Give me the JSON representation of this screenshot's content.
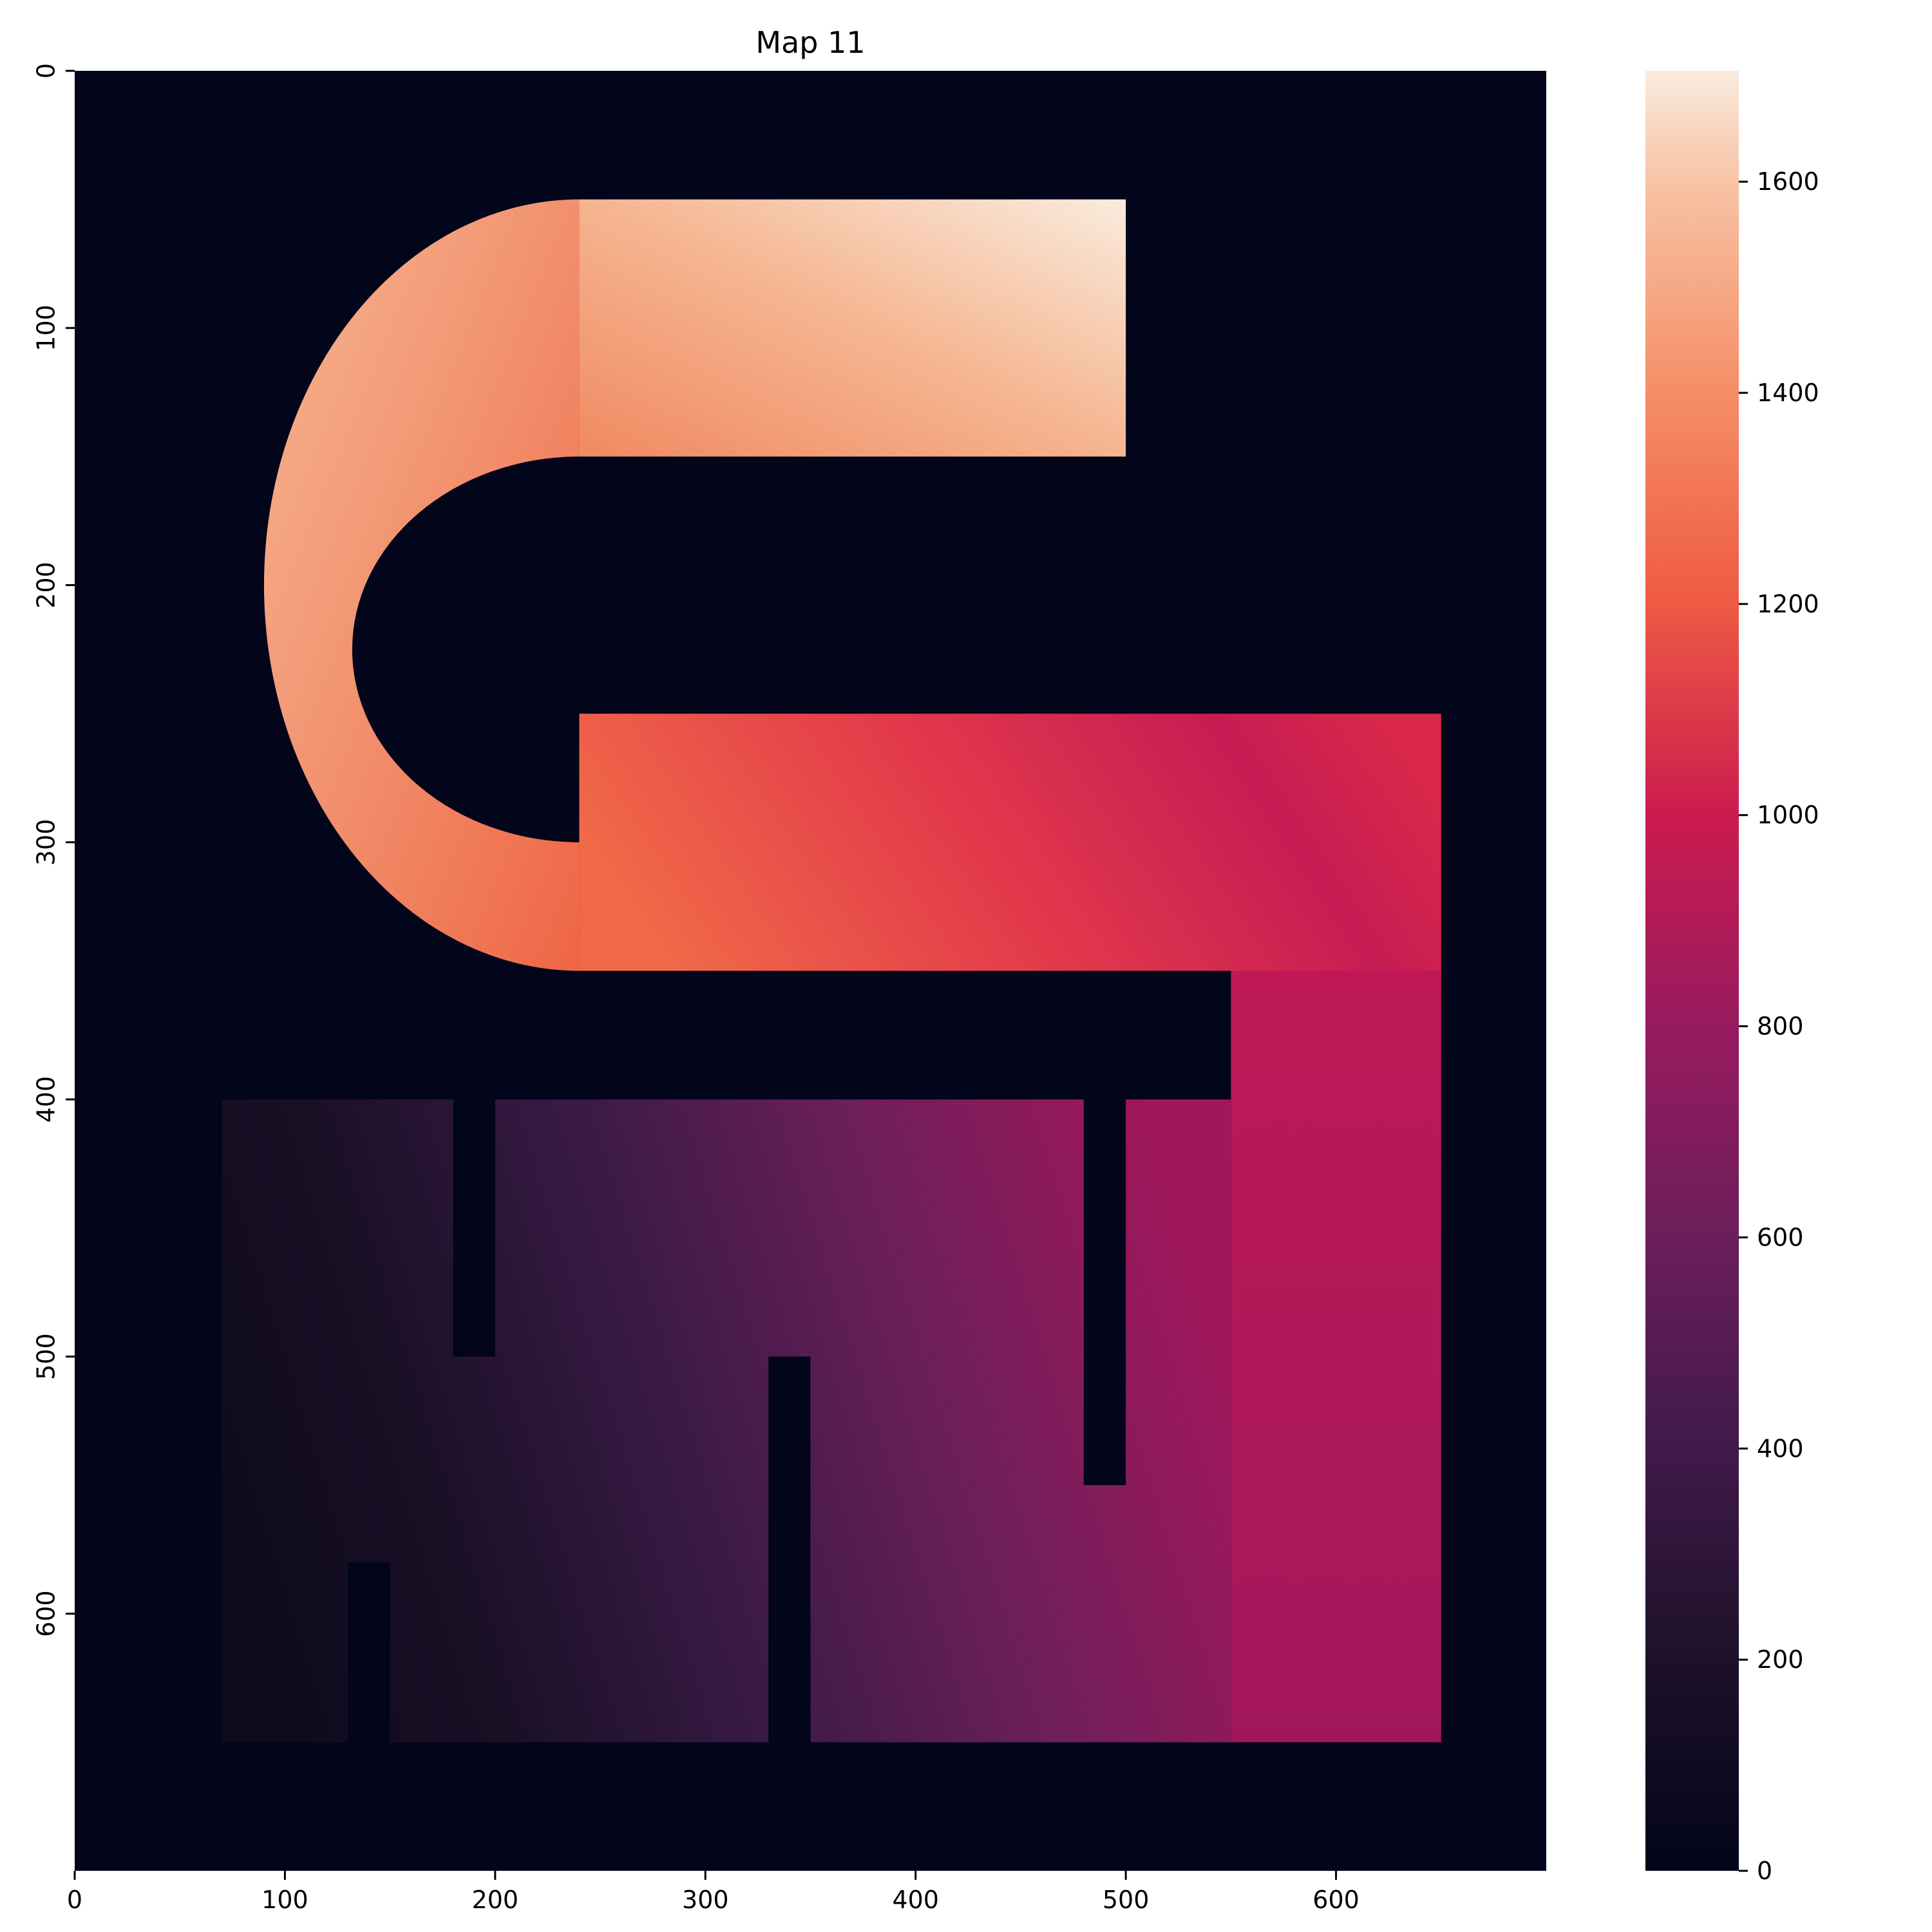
{
  "chart_data": {
    "type": "heatmap",
    "title": "Map 11",
    "xlabel": "",
    "ylabel": "",
    "x_ticks": [
      0,
      100,
      200,
      300,
      400,
      500,
      600
    ],
    "y_ticks": [
      0,
      100,
      200,
      300,
      400,
      500,
      600
    ],
    "xlim": [
      0,
      700
    ],
    "ylim": [
      700,
      0
    ],
    "colorbar": {
      "ticks": [
        0,
        200,
        400,
        600,
        800,
        1000,
        1200,
        1400,
        1600
      ],
      "range": [
        0,
        1705
      ],
      "colormap": "rocket"
    },
    "regions": [
      {
        "name": "upper-corridor-value-increase",
        "kind": "path",
        "note": "C-shaped corridor with distance values rising toward the top-right end (~1700)"
      },
      {
        "name": "middle-corridor",
        "kind": "path",
        "note": "horizontal band rows 250-350 from x 240 to 650, values ~1000-1100"
      },
      {
        "name": "right-column",
        "kind": "path",
        "note": "vertical band x 550-650 rows 250-650, values ~750-950"
      },
      {
        "name": "lower-region",
        "kind": "path",
        "note": "rooms rows 400-650, values ~50-800 increasing left to right"
      }
    ],
    "walls": [
      {
        "x": [
          180,
          200
        ],
        "y": [
          400,
          500
        ]
      },
      {
        "x": [
          480,
          500
        ],
        "y": [
          400,
          550
        ]
      },
      {
        "x": [
          330,
          350
        ],
        "y": [
          500,
          650
        ]
      },
      {
        "x": [
          130,
          150
        ],
        "y": [
          580,
          650
        ]
      }
    ]
  }
}
